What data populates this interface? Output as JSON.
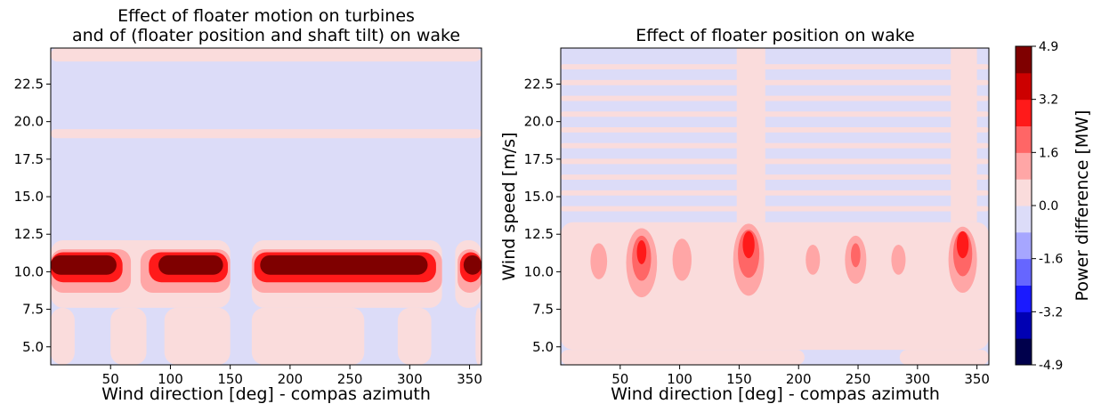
{
  "chart_data": [
    {
      "type": "heatmap",
      "title_lines": [
        "Effect of floater motion on turbines",
        "and of (floater position and shaft tilt) on wake"
      ],
      "xlabel": "Wind direction [deg] - compas azimuth",
      "ylabel": "",
      "xlim": [
        0,
        360
      ],
      "ylim": [
        3.8,
        24.9
      ],
      "xticks": [
        50,
        100,
        150,
        200,
        250,
        300,
        350
      ],
      "yticks": [
        5.0,
        7.5,
        10.0,
        12.5,
        15.0,
        17.5,
        20.0,
        22.5
      ],
      "baseline": -0.35,
      "features": [
        {
          "kind": "band",
          "y0": 3.8,
          "y1": 7.6,
          "value": 0.35,
          "excludeX": [
            [
              20,
              50
            ],
            [
              80,
              95
            ],
            [
              150,
              168
            ],
            [
              262,
              290
            ],
            [
              318,
              355
            ]
          ]
        },
        {
          "kind": "band",
          "y0": 7.6,
          "y1": 12.1,
          "value": 0.6,
          "excludeX": [
            [
              150,
              168
            ],
            [
              327,
              338
            ]
          ]
        },
        {
          "kind": "band",
          "y0": 8.6,
          "y1": 11.5,
          "value": 1.6,
          "excludeX": [
            [
              67,
              75
            ],
            [
              150,
              168
            ],
            [
              327,
              340
            ]
          ]
        },
        {
          "kind": "band",
          "y0": 9.3,
          "y1": 11.3,
          "value": 3.0,
          "excludeX": [
            [
              60,
              82
            ],
            [
              148,
              170
            ],
            [
              322,
              342
            ]
          ]
        },
        {
          "kind": "band",
          "y0": 9.8,
          "y1": 11.1,
          "value": 4.4,
          "excludeX": [
            [
              55,
              90
            ],
            [
              144,
              175
            ],
            [
              315,
              345
            ]
          ]
        },
        {
          "kind": "band",
          "y0": 18.9,
          "y1": 19.5,
          "value": 0.35
        },
        {
          "kind": "band",
          "y0": 24.0,
          "y1": 24.9,
          "value": 0.35
        }
      ],
      "colorbar": {
        "label": "Power difference [MW]",
        "ticks": [
          "4.9",
          "3.2",
          "1.6",
          "0.0",
          "-1.6",
          "-3.2",
          "-4.9"
        ],
        "range": [
          -4.9,
          4.9
        ]
      }
    },
    {
      "type": "heatmap",
      "title_lines": [
        "Effect of floater position on wake"
      ],
      "xlabel": "Wind direction [deg] - compas azimuth",
      "ylabel": "Wind speed [m/s]",
      "xlim": [
        0,
        360
      ],
      "ylim": [
        3.8,
        24.9
      ],
      "xticks": [
        50,
        100,
        150,
        200,
        250,
        300,
        350
      ],
      "yticks": [
        5.0,
        7.5,
        10.0,
        12.5,
        15.0,
        17.5,
        20.0,
        22.5
      ],
      "baseline": -0.35,
      "features": [
        {
          "kind": "band",
          "y0": 4.8,
          "y1": 13.3,
          "value": 0.35
        },
        {
          "kind": "band",
          "y0": 3.8,
          "y1": 4.8,
          "value": 0.35,
          "excludeX": [
            [
              205,
              285
            ]
          ]
        },
        {
          "kind": "stripes",
          "y0": 14.2,
          "y1": 24.6,
          "step": 1.05,
          "thickness": 0.35,
          "value": 0.35
        },
        {
          "kind": "column",
          "x0": 148,
          "x1": 172,
          "y0": 13.3,
          "y1": 24.9,
          "value": 0.35
        },
        {
          "kind": "column",
          "x0": 328,
          "x1": 350,
          "y0": 13.3,
          "y1": 24.9,
          "value": 0.35
        },
        {
          "kind": "blob",
          "x": 32,
          "y": 10.7,
          "rx": 7,
          "ry": 1.2,
          "value": 1.0
        },
        {
          "kind": "blob",
          "x": 68,
          "y": 10.6,
          "rx": 13,
          "ry": 2.3,
          "value": 1.0
        },
        {
          "kind": "blob",
          "x": 68,
          "y": 10.9,
          "rx": 8,
          "ry": 1.5,
          "value": 1.8
        },
        {
          "kind": "blob",
          "x": 68,
          "y": 11.3,
          "rx": 4,
          "ry": 0.8,
          "value": 2.9
        },
        {
          "kind": "blob",
          "x": 102,
          "y": 10.8,
          "rx": 8,
          "ry": 1.4,
          "value": 1.0
        },
        {
          "kind": "blob",
          "x": 158,
          "y": 10.8,
          "rx": 13,
          "ry": 2.4,
          "value": 1.0
        },
        {
          "kind": "blob",
          "x": 158,
          "y": 11.2,
          "rx": 9,
          "ry": 1.6,
          "value": 1.8
        },
        {
          "kind": "blob",
          "x": 158,
          "y": 11.8,
          "rx": 5,
          "ry": 0.9,
          "value": 3.2
        },
        {
          "kind": "blob",
          "x": 212,
          "y": 10.8,
          "rx": 6,
          "ry": 1.0,
          "value": 1.0
        },
        {
          "kind": "blob",
          "x": 248,
          "y": 10.8,
          "rx": 9,
          "ry": 1.6,
          "value": 1.0
        },
        {
          "kind": "blob",
          "x": 248,
          "y": 11.1,
          "rx": 4,
          "ry": 0.8,
          "value": 1.8
        },
        {
          "kind": "blob",
          "x": 284,
          "y": 10.8,
          "rx": 6,
          "ry": 1.0,
          "value": 1.0
        },
        {
          "kind": "blob",
          "x": 338,
          "y": 10.8,
          "rx": 12,
          "ry": 2.2,
          "value": 1.0
        },
        {
          "kind": "blob",
          "x": 338,
          "y": 11.2,
          "rx": 8,
          "ry": 1.5,
          "value": 1.8
        },
        {
          "kind": "blob",
          "x": 338,
          "y": 11.8,
          "rx": 5,
          "ry": 0.9,
          "value": 3.2
        }
      ],
      "colorbar": null
    }
  ],
  "colors": {
    "scale": [
      "#00004c",
      "#0000b3",
      "#1a1aff",
      "#6666ff",
      "#a6a6ff",
      "#dcdcf8",
      "#fadcdc",
      "#ffa6a6",
      "#ff6666",
      "#ff1a1a",
      "#cc0000",
      "#7f0000"
    ],
    "background": "#ffffff"
  }
}
